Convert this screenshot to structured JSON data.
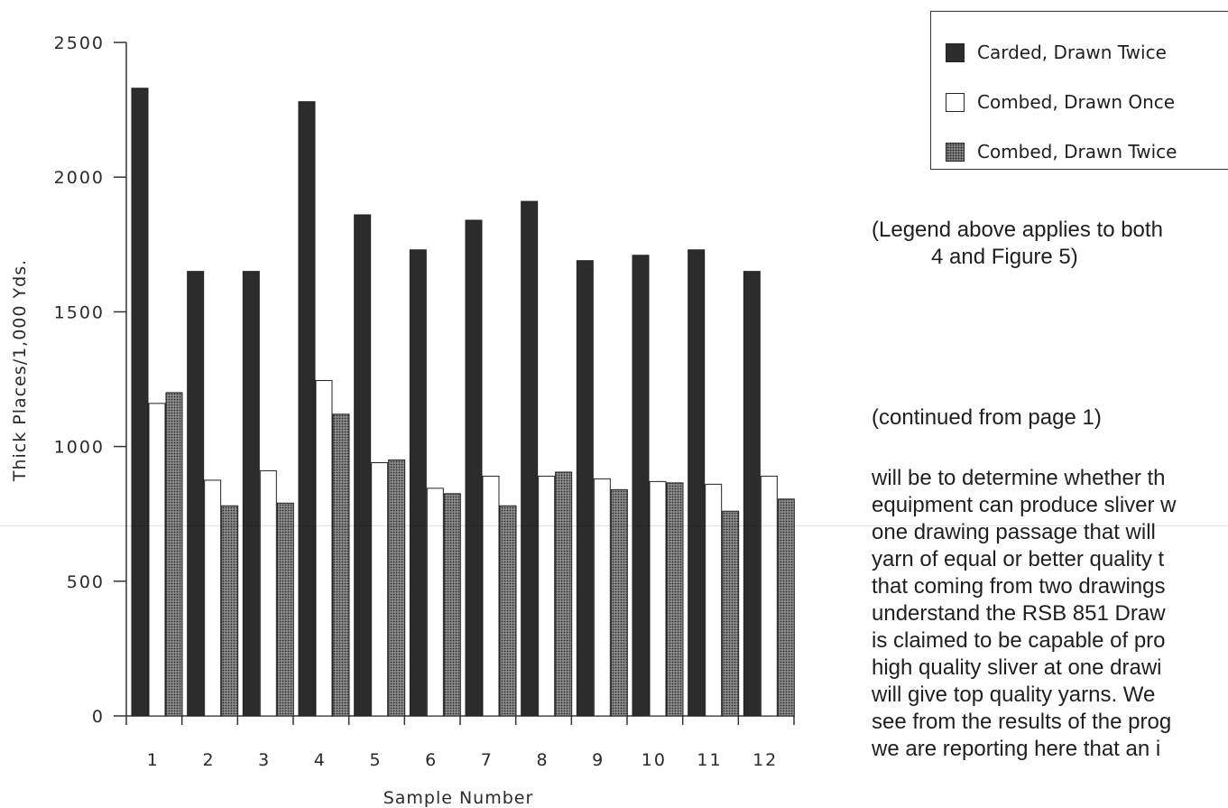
{
  "chart_data": {
    "type": "bar",
    "xlabel": "Sample Number",
    "ylabel": "Thick Places/1,000 Yds.",
    "ylim": [
      0,
      2500
    ],
    "yticks": [
      "0",
      "500",
      "1000",
      "1500",
      "2000",
      "2500"
    ],
    "categories": [
      "1",
      "2",
      "3",
      "4",
      "5",
      "6",
      "7",
      "8",
      "9",
      "10",
      "11",
      "12"
    ],
    "series": [
      {
        "name": "Carded, Drawn Twice",
        "color": "#2c2c2c",
        "pattern": "solid",
        "values": [
          2330,
          1650,
          1650,
          2280,
          1860,
          1730,
          1840,
          1910,
          1690,
          1710,
          1730,
          1650
        ]
      },
      {
        "name": "Combed, Drawn Once",
        "color": "#ffffff",
        "pattern": "outline",
        "values": [
          1160,
          875,
          910,
          1245,
          940,
          845,
          890,
          890,
          880,
          870,
          860,
          890
        ]
      },
      {
        "name": "Combed, Drawn Twice",
        "color": "#8a8a8a",
        "pattern": "stipple",
        "values": [
          1200,
          780,
          790,
          1120,
          950,
          825,
          780,
          905,
          840,
          865,
          760,
          805
        ]
      }
    ],
    "legend": "top-right",
    "grid": false
  },
  "notes": {
    "legend_note_line1": "(Legend above applies to both",
    "legend_note_line2": "4 and Figure 5)",
    "continued": "(continued from page 1)",
    "body_lines": [
      "will be to determine whether th",
      "equipment can produce sliver w",
      "one drawing passage that will",
      "yarn of equal or better quality t",
      "that coming from two drawings",
      "understand the RSB 851 Draw",
      "is claimed to be capable of pro",
      "high quality sliver at one drawi",
      "will give top quality yarns. We",
      "see from the results of the prog",
      "we are reporting here that an i"
    ]
  }
}
